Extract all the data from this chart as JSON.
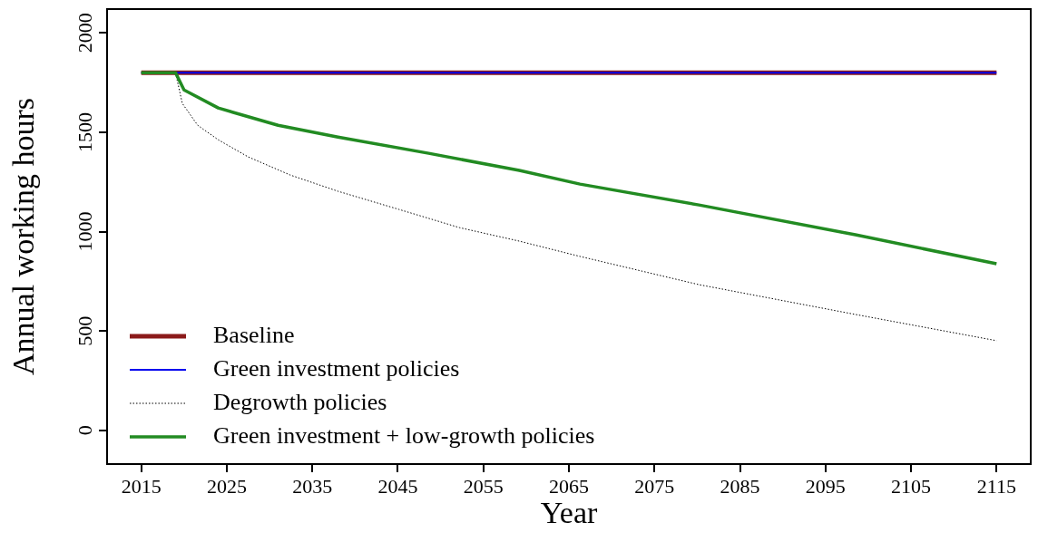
{
  "chart_data": {
    "type": "line",
    "xlabel": "Year",
    "ylabel": "Annual working hours",
    "xlim": [
      2011,
      2119
    ],
    "xticks": [
      2015,
      2025,
      2035,
      2045,
      2055,
      2065,
      2075,
      2085,
      2095,
      2105,
      2115
    ],
    "ylim": [
      -170,
      2120
    ],
    "yticks": [
      0,
      500,
      1000,
      1500,
      2000
    ],
    "grid": false,
    "legend": "bottom left",
    "marker": "none",
    "series": [
      {
        "name": "Baseline",
        "color": "#8b1a1a",
        "line_style": "solid",
        "x": [
          2015,
          2115
        ],
        "values": [
          1800,
          1800
        ]
      },
      {
        "name": "Green investment policies",
        "color": "#0000ee",
        "line_style": "solid",
        "x": [
          2015,
          2115
        ],
        "values": [
          1800,
          1800
        ]
      },
      {
        "name": "Degrowth policies",
        "color": "#000000",
        "line_style": "dotted",
        "x": [
          2015,
          2019,
          2019.8,
          2021.6,
          2024,
          2027.5,
          2032.4,
          2038,
          2045.1,
          2052.2,
          2059.2,
          2066.3,
          2080.2,
          2098.5,
          2115
        ],
        "values": [
          1800,
          1800,
          1645,
          1535,
          1462,
          1376,
          1285,
          1203,
          1112,
          1020,
          952,
          875,
          733,
          583,
          451
        ]
      },
      {
        "name": "Green investment + low-growth policies",
        "color": "#228b22",
        "line_style": "solid",
        "x": [
          2015,
          2019,
          2020,
          2024,
          2031,
          2038,
          2048.6,
          2059.2,
          2066.3,
          2080.2,
          2098.5,
          2115
        ],
        "values": [
          1800,
          1800,
          1713,
          1622,
          1535,
          1476,
          1394,
          1308,
          1239,
          1134,
          984,
          838
        ]
      }
    ]
  }
}
